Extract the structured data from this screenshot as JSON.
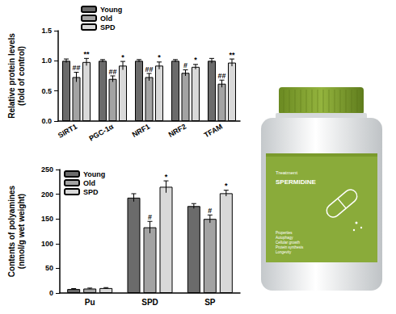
{
  "chart_data": [
    {
      "type": "bar",
      "ylabel": "Relative protein levels\n(fold of control)",
      "categories": [
        "SIRT1",
        "PGC-1α",
        "NRF1",
        "NRF2",
        "TFAM"
      ],
      "series": [
        {
          "name": "Young",
          "color": "#6b6b6b",
          "values": [
            1.0,
            1.0,
            1.0,
            1.0,
            1.0
          ],
          "errors": [
            0.03,
            0.02,
            0.02,
            0.02,
            0.04
          ]
        },
        {
          "name": "Old",
          "color": "#a3a3a3",
          "values": [
            0.73,
            0.7,
            0.73,
            0.8,
            0.62
          ],
          "errors": [
            0.08,
            0.05,
            0.06,
            0.05,
            0.06
          ],
          "annotations": [
            "##",
            "##",
            "##",
            "#",
            "##"
          ]
        },
        {
          "name": "SPD",
          "color": "#d9d9d9",
          "values": [
            0.98,
            0.92,
            0.92,
            0.9,
            0.97
          ],
          "errors": [
            0.06,
            0.07,
            0.06,
            0.04,
            0.06
          ],
          "annotations": [
            "**",
            "*",
            "*",
            "*",
            "**"
          ]
        }
      ],
      "ylim": [
        0,
        1.5
      ],
      "yticks": [
        {
          "value": 0,
          "label": "0.0"
        },
        0.5,
        {
          "value": 1,
          "label": "1.0"
        },
        1.5
      ],
      "grid": false,
      "legend": "top-left"
    },
    {
      "type": "bar",
      "ylabel": "Contents of polyamines\n(nmol/g wet weight)",
      "categories": [
        "Pu",
        "SPD",
        "SP"
      ],
      "series": [
        {
          "name": "Young",
          "color": "#6b6b6b",
          "values": [
            8,
            193,
            176
          ],
          "errors": [
            1,
            8,
            5
          ]
        },
        {
          "name": "Old",
          "color": "#a3a3a3",
          "values": [
            9,
            133,
            150
          ],
          "errors": [
            1,
            12,
            8
          ],
          "annotations": [
            null,
            "#",
            "#"
          ]
        },
        {
          "name": "SPD",
          "color": "#d9d9d9",
          "values": [
            10,
            215,
            202
          ],
          "errors": [
            1,
            12,
            6
          ],
          "annotations": [
            null,
            "*",
            "*"
          ]
        }
      ],
      "ylim": [
        0,
        250
      ],
      "yticks": [
        0,
        50,
        100,
        150,
        200,
        250
      ],
      "grid": false,
      "legend": "top-left"
    }
  ],
  "product_label": {
    "brand": "Treatment",
    "name": "SPERMIDINE",
    "properties": [
      "Properties",
      "Autophagy",
      "Cellular growth",
      "Protein synthesis",
      "Longevity"
    ]
  }
}
